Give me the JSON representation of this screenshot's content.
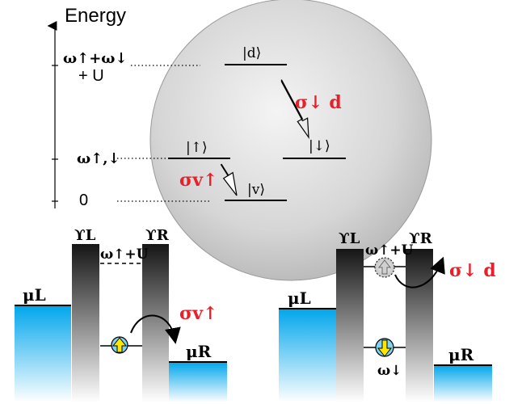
{
  "energy_diagram": {
    "axis_title": "Energy",
    "levels": [
      {
        "label": "ω↑+ω↓",
        "label2": "+ U"
      },
      {
        "label": "ω↑,↓"
      },
      {
        "label": "0"
      }
    ],
    "states": {
      "d": "|d⟩",
      "up": "|↑⟩",
      "down": "|↓⟩",
      "v": "|v⟩"
    },
    "transitions": {
      "down_d": "σ↓ d",
      "v_up": "σv↑"
    }
  },
  "left_panel": {
    "mu_L": "μL",
    "mu_R": "μR",
    "gamma_L": "ϒL",
    "gamma_R": "ϒR",
    "level_label": "ω↑+U",
    "transition": "σv↑"
  },
  "right_panel": {
    "mu_L": "μL",
    "mu_R": "μR",
    "gamma_L": "ϒL",
    "gamma_R": "ϒR",
    "upper_level_label": "ω↑+U",
    "lower_level_label": "ω↓",
    "transition": "σ↓ d"
  },
  "colors": {
    "reservoir": "#00aaee",
    "transition_label": "#e8202a",
    "spin_arrow_fill": "#ffe800",
    "dot_fill": "#7fd3f0"
  }
}
